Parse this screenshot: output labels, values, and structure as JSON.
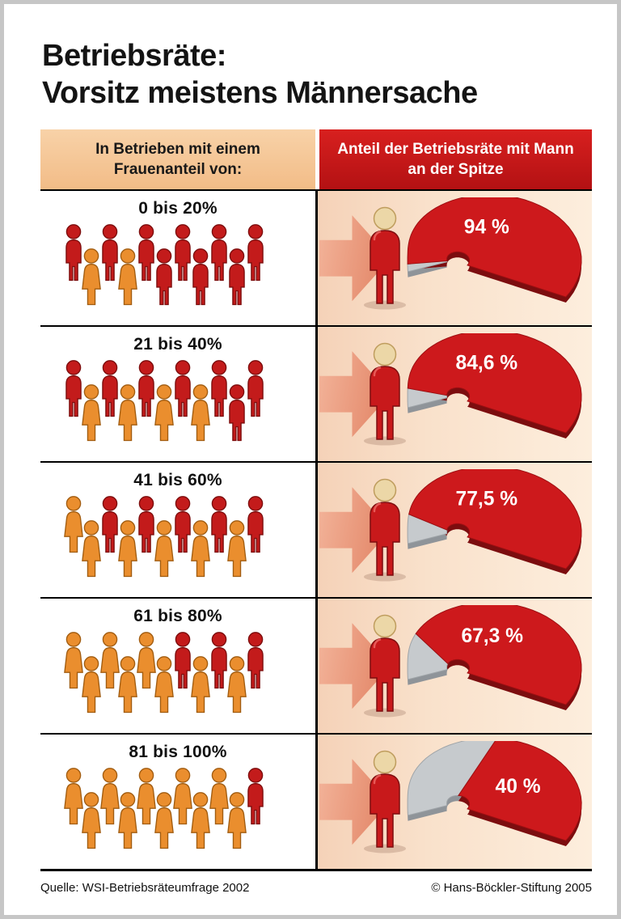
{
  "title": {
    "line1": "Betriebsräte:",
    "line2": "Vorsitz meistens Männersache"
  },
  "table": {
    "header_left": "In Betrieben mit einem Frauenanteil von:",
    "header_right": "Anteil der Betriebsräte mit Mann an der Spitze"
  },
  "footer": {
    "source": "Quelle: WSI-Betriebsräteumfrage 2002",
    "copyright": "© Hans-Böckler-Stiftung 2005"
  },
  "colors": {
    "header_red": "#c8181b",
    "header_peach": "#f5c79d",
    "gauge_red": "#cd191c",
    "gauge_red_dark": "#7c0d0f",
    "gauge_gray": "#c6cacd",
    "gauge_gray_dark": "#8f9499",
    "man_red": "#c31b1b",
    "man_red_dark": "#7c0d0d",
    "woman_orange": "#ea8e2e",
    "woman_orange_dark": "#a15c10",
    "head_beige": "#ecd7a7",
    "arrow_salmon": "#e89478",
    "background_peach": "#f8e0cb"
  },
  "chart_data": {
    "type": "pie",
    "title": "Betriebsräte: Vorsitz meistens Männersache",
    "group_axis_label": "In Betrieben mit einem Frauenanteil von:",
    "value_axis_label": "Anteil der Betriebsräte mit Mann an der Spitze",
    "categories": [
      "0 bis 20%",
      "21 bis 40%",
      "41 bis 60%",
      "61 bis 80%",
      "81 bis 100%"
    ],
    "values": [
      94,
      84.6,
      77.5,
      67.3,
      40
    ],
    "value_labels": [
      "94 %",
      "84,6 %",
      "77,5 %",
      "67,3 %",
      "40 %"
    ],
    "unit": "%",
    "value_range": [
      0,
      100
    ],
    "icon_counts": {
      "women": [
        2,
        4,
        6,
        8,
        10
      ],
      "men": [
        9,
        7,
        5,
        3,
        1
      ]
    },
    "source": "WSI-Betriebsräteumfrage 2002"
  }
}
